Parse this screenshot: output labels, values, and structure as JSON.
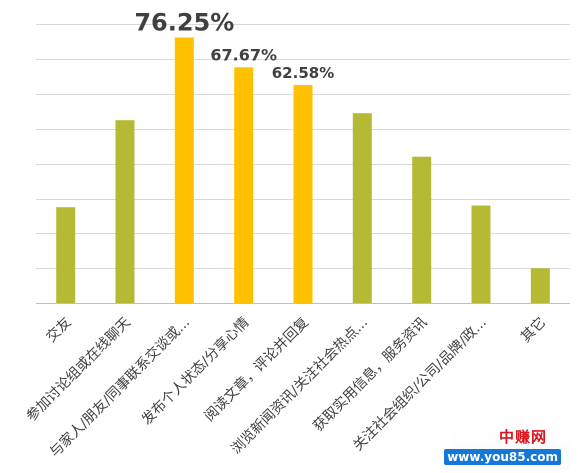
{
  "chart_data": {
    "type": "bar",
    "categories": [
      "交友",
      "参加讨论组或在线聊天",
      "与家人/朋友/同事联系交谈或...",
      "发布个人状态/分享心情",
      "阅读文章，评论并回复",
      "浏览新闻资讯/关注社会热点...",
      "获取实用信息，服务资讯",
      "关注社会组织/公司/品牌/政...",
      "其它"
    ],
    "values": [
      27.5,
      52.5,
      76.25,
      67.67,
      62.58,
      54.5,
      42.0,
      28.0,
      10.0
    ],
    "data_labels": [
      "",
      "",
      "76.25%",
      "67.67%",
      "62.58%",
      "",
      "",
      "",
      ""
    ],
    "ylim": [
      0,
      85
    ],
    "gridlines": [
      0,
      10,
      20,
      30,
      40,
      50,
      60,
      70,
      80
    ],
    "grid": true,
    "legend": "none",
    "colors": {
      "green": "#b5ba34",
      "orange": "#ffc000",
      "grid": "#d9d9d9",
      "axis": "#bfbfbf",
      "label": "#404040"
    },
    "bar_colors": [
      "green",
      "green",
      "orange",
      "orange",
      "orange",
      "green",
      "green",
      "green",
      "green"
    ]
  },
  "watermark": {
    "title": "中赚网",
    "url": "www.you85.com"
  }
}
